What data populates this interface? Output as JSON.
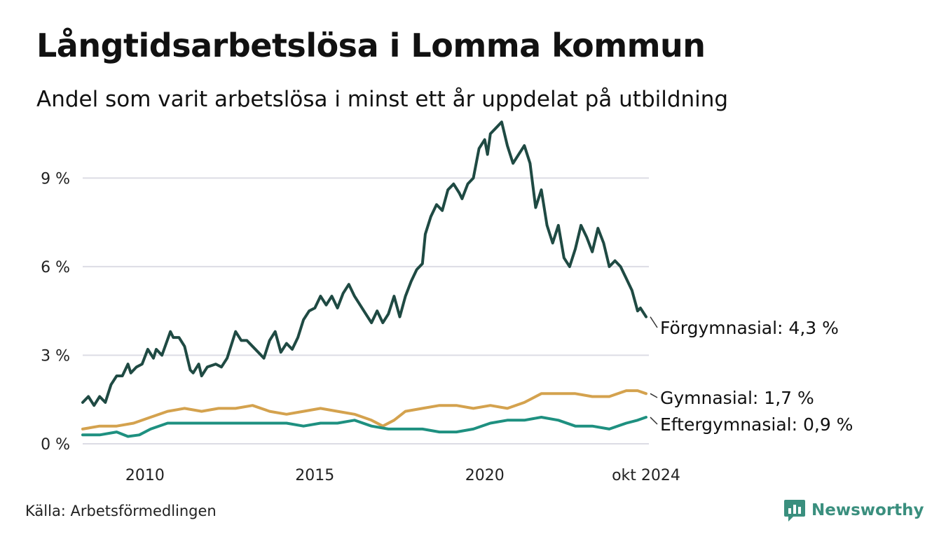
{
  "title": "Långtidsarbetslösa i Lomma kommun",
  "subtitle": "Andel som varit arbetslösa i minst ett år uppdelat på utbildning",
  "source": "Källa: Arbetsförmedlingen",
  "brand": {
    "name": "Newsworthy",
    "icon": "newsworthy-chart-logo-icon",
    "color": "#3a8f7e"
  },
  "chart_data": {
    "type": "line",
    "x_range": [
      "2008-03",
      "2024-10"
    ],
    "ylim": [
      0,
      11
    ],
    "yticks": [
      0,
      3,
      6,
      9
    ],
    "ytick_labels": [
      "0 %",
      "3 %",
      "6 %",
      "9 %"
    ],
    "xticks": [
      "2010-01",
      "2015-01",
      "2020-01",
      "2024-10"
    ],
    "xtick_labels": [
      "2010",
      "2015",
      "2020",
      "okt 2024"
    ],
    "grid": "horizontal",
    "legend": "inline-right",
    "series": [
      {
        "name": "Förgymnasial",
        "end_label": "Förgymnasial: 4,3 %",
        "color": "#1f4a43",
        "points": [
          [
            "2008-03",
            1.4
          ],
          [
            "2008-05",
            1.6
          ],
          [
            "2008-07",
            1.3
          ],
          [
            "2008-09",
            1.6
          ],
          [
            "2008-11",
            1.4
          ],
          [
            "2009-01",
            2.0
          ],
          [
            "2009-03",
            2.3
          ],
          [
            "2009-05",
            2.3
          ],
          [
            "2009-07",
            2.7
          ],
          [
            "2009-08",
            2.4
          ],
          [
            "2009-10",
            2.6
          ],
          [
            "2009-12",
            2.7
          ],
          [
            "2010-02",
            3.2
          ],
          [
            "2010-04",
            2.9
          ],
          [
            "2010-05",
            3.2
          ],
          [
            "2010-07",
            3.0
          ],
          [
            "2010-10",
            3.8
          ],
          [
            "2010-11",
            3.6
          ],
          [
            "2011-01",
            3.6
          ],
          [
            "2011-03",
            3.3
          ],
          [
            "2011-05",
            2.5
          ],
          [
            "2011-06",
            2.4
          ],
          [
            "2011-08",
            2.7
          ],
          [
            "2011-09",
            2.3
          ],
          [
            "2011-11",
            2.6
          ],
          [
            "2012-02",
            2.7
          ],
          [
            "2012-04",
            2.6
          ],
          [
            "2012-06",
            2.9
          ],
          [
            "2012-09",
            3.8
          ],
          [
            "2012-11",
            3.5
          ],
          [
            "2013-01",
            3.5
          ],
          [
            "2013-03",
            3.3
          ],
          [
            "2013-05",
            3.1
          ],
          [
            "2013-07",
            2.9
          ],
          [
            "2013-09",
            3.5
          ],
          [
            "2013-11",
            3.8
          ],
          [
            "2014-01",
            3.1
          ],
          [
            "2014-03",
            3.4
          ],
          [
            "2014-05",
            3.2
          ],
          [
            "2014-07",
            3.6
          ],
          [
            "2014-09",
            4.2
          ],
          [
            "2014-11",
            4.5
          ],
          [
            "2015-01",
            4.6
          ],
          [
            "2015-03",
            5.0
          ],
          [
            "2015-05",
            4.7
          ],
          [
            "2015-07",
            5.0
          ],
          [
            "2015-09",
            4.6
          ],
          [
            "2015-11",
            5.1
          ],
          [
            "2016-01",
            5.4
          ],
          [
            "2016-03",
            5.0
          ],
          [
            "2016-05",
            4.7
          ],
          [
            "2016-07",
            4.4
          ],
          [
            "2016-09",
            4.1
          ],
          [
            "2016-11",
            4.5
          ],
          [
            "2017-01",
            4.1
          ],
          [
            "2017-03",
            4.4
          ],
          [
            "2017-05",
            5.0
          ],
          [
            "2017-07",
            4.3
          ],
          [
            "2017-09",
            5.0
          ],
          [
            "2017-11",
            5.5
          ],
          [
            "2018-01",
            5.9
          ],
          [
            "2018-03",
            6.1
          ],
          [
            "2018-04",
            7.1
          ],
          [
            "2018-06",
            7.7
          ],
          [
            "2018-08",
            8.1
          ],
          [
            "2018-10",
            7.9
          ],
          [
            "2018-12",
            8.6
          ],
          [
            "2019-02",
            8.8
          ],
          [
            "2019-04",
            8.5
          ],
          [
            "2019-05",
            8.3
          ],
          [
            "2019-07",
            8.8
          ],
          [
            "2019-09",
            9.0
          ],
          [
            "2019-11",
            10.0
          ],
          [
            "2020-01",
            10.3
          ],
          [
            "2020-02",
            9.8
          ],
          [
            "2020-03",
            10.5
          ],
          [
            "2020-05",
            10.7
          ],
          [
            "2020-07",
            10.9
          ],
          [
            "2020-09",
            10.1
          ],
          [
            "2020-11",
            9.5
          ],
          [
            "2021-01",
            9.8
          ],
          [
            "2021-03",
            10.1
          ],
          [
            "2021-05",
            9.5
          ],
          [
            "2021-07",
            8.0
          ],
          [
            "2021-09",
            8.6
          ],
          [
            "2021-11",
            7.4
          ],
          [
            "2022-01",
            6.8
          ],
          [
            "2022-03",
            7.4
          ],
          [
            "2022-05",
            6.3
          ],
          [
            "2022-07",
            6.0
          ],
          [
            "2022-09",
            6.6
          ],
          [
            "2022-11",
            7.4
          ],
          [
            "2023-01",
            7.0
          ],
          [
            "2023-03",
            6.5
          ],
          [
            "2023-05",
            7.3
          ],
          [
            "2023-07",
            6.8
          ],
          [
            "2023-09",
            6.0
          ],
          [
            "2023-11",
            6.2
          ],
          [
            "2024-01",
            6.0
          ],
          [
            "2024-03",
            5.6
          ],
          [
            "2024-05",
            5.2
          ],
          [
            "2024-07",
            4.5
          ],
          [
            "2024-08",
            4.6
          ],
          [
            "2024-10",
            4.3
          ]
        ]
      },
      {
        "name": "Gymnasial",
        "end_label": "Gymnasial: 1,7 %",
        "color": "#d4a24e",
        "points": [
          [
            "2008-03",
            0.5
          ],
          [
            "2008-09",
            0.6
          ],
          [
            "2009-03",
            0.6
          ],
          [
            "2009-09",
            0.7
          ],
          [
            "2010-03",
            0.9
          ],
          [
            "2010-09",
            1.1
          ],
          [
            "2011-03",
            1.2
          ],
          [
            "2011-09",
            1.1
          ],
          [
            "2012-03",
            1.2
          ],
          [
            "2012-09",
            1.2
          ],
          [
            "2013-03",
            1.3
          ],
          [
            "2013-09",
            1.1
          ],
          [
            "2014-03",
            1.0
          ],
          [
            "2014-09",
            1.1
          ],
          [
            "2015-03",
            1.2
          ],
          [
            "2015-09",
            1.1
          ],
          [
            "2016-03",
            1.0
          ],
          [
            "2016-09",
            0.8
          ],
          [
            "2017-01",
            0.6
          ],
          [
            "2017-05",
            0.8
          ],
          [
            "2017-09",
            1.1
          ],
          [
            "2018-03",
            1.2
          ],
          [
            "2018-09",
            1.3
          ],
          [
            "2019-03",
            1.3
          ],
          [
            "2019-09",
            1.2
          ],
          [
            "2020-03",
            1.3
          ],
          [
            "2020-09",
            1.2
          ],
          [
            "2021-03",
            1.4
          ],
          [
            "2021-09",
            1.7
          ],
          [
            "2022-03",
            1.7
          ],
          [
            "2022-09",
            1.7
          ],
          [
            "2023-03",
            1.6
          ],
          [
            "2023-09",
            1.6
          ],
          [
            "2024-03",
            1.8
          ],
          [
            "2024-07",
            1.8
          ],
          [
            "2024-10",
            1.7
          ]
        ]
      },
      {
        "name": "Eftergymnasial",
        "end_label": "Eftergymnasial: 0,9 %",
        "color": "#1e9080",
        "points": [
          [
            "2008-03",
            0.3
          ],
          [
            "2008-09",
            0.3
          ],
          [
            "2009-03",
            0.4
          ],
          [
            "2009-07",
            0.25
          ],
          [
            "2009-11",
            0.3
          ],
          [
            "2010-03",
            0.5
          ],
          [
            "2010-09",
            0.7
          ],
          [
            "2011-03",
            0.7
          ],
          [
            "2011-09",
            0.7
          ],
          [
            "2012-03",
            0.7
          ],
          [
            "2012-09",
            0.7
          ],
          [
            "2013-03",
            0.7
          ],
          [
            "2013-09",
            0.7
          ],
          [
            "2014-03",
            0.7
          ],
          [
            "2014-09",
            0.6
          ],
          [
            "2015-03",
            0.7
          ],
          [
            "2015-09",
            0.7
          ],
          [
            "2016-03",
            0.8
          ],
          [
            "2016-09",
            0.6
          ],
          [
            "2017-03",
            0.5
          ],
          [
            "2017-09",
            0.5
          ],
          [
            "2018-03",
            0.5
          ],
          [
            "2018-09",
            0.4
          ],
          [
            "2019-03",
            0.4
          ],
          [
            "2019-09",
            0.5
          ],
          [
            "2020-03",
            0.7
          ],
          [
            "2020-09",
            0.8
          ],
          [
            "2021-03",
            0.8
          ],
          [
            "2021-09",
            0.9
          ],
          [
            "2022-03",
            0.8
          ],
          [
            "2022-09",
            0.6
          ],
          [
            "2023-03",
            0.6
          ],
          [
            "2023-09",
            0.5
          ],
          [
            "2024-03",
            0.7
          ],
          [
            "2024-07",
            0.8
          ],
          [
            "2024-10",
            0.9
          ]
        ]
      }
    ]
  }
}
